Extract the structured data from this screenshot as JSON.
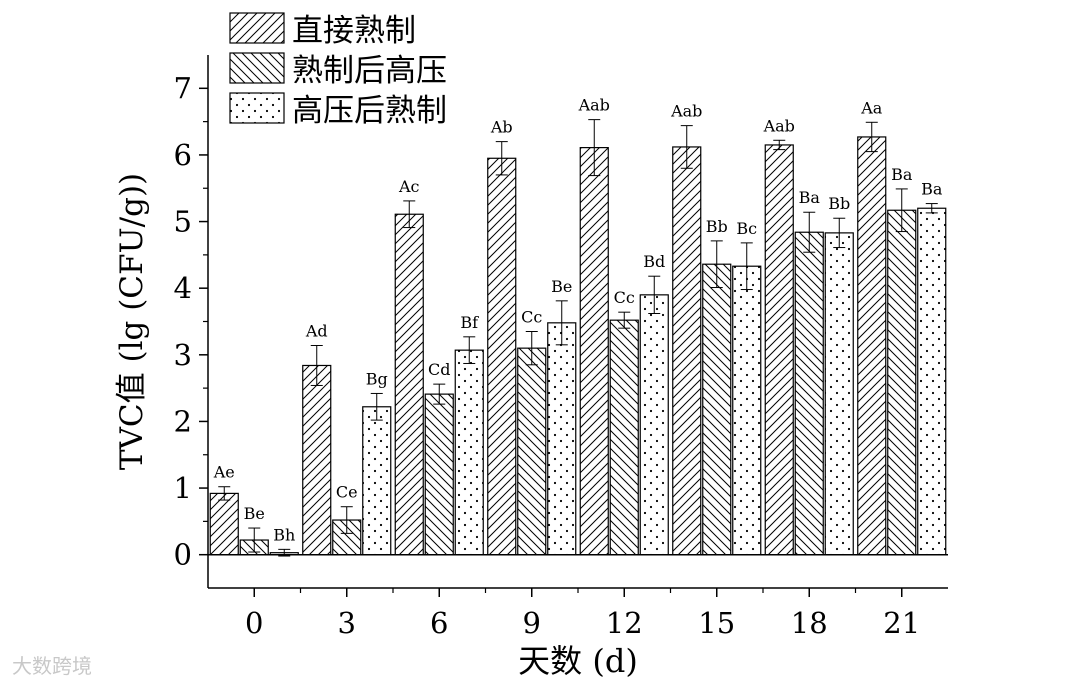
{
  "chart_data": {
    "type": "bar",
    "xlabel": "天数 (d)",
    "ylabel": "TVC值 (lg (CFU/g))",
    "ylim": [
      -0.5,
      7.5
    ],
    "yticks": [
      0,
      1,
      2,
      3,
      4,
      5,
      6,
      7
    ],
    "categories": [
      "0",
      "3",
      "6",
      "9",
      "12",
      "15",
      "18",
      "21"
    ],
    "legend_position": "top-left",
    "series": [
      {
        "name": "直接熟制",
        "pattern": "diagonal-forward",
        "values": [
          0.92,
          2.84,
          5.11,
          5.95,
          6.11,
          6.12,
          6.15,
          6.27
        ],
        "errors": [
          0.1,
          0.3,
          0.2,
          0.25,
          0.42,
          0.32,
          0.07,
          0.22
        ],
        "labels": [
          "Ae",
          "Ad",
          "Ac",
          "Ab",
          "Aab",
          "Aab",
          "Aab",
          "Aa"
        ]
      },
      {
        "name": "熟制后高压",
        "pattern": "diagonal-backward",
        "values": [
          0.22,
          0.52,
          2.41,
          3.1,
          3.52,
          4.36,
          4.84,
          5.17
        ],
        "errors": [
          0.18,
          0.2,
          0.15,
          0.25,
          0.12,
          0.35,
          0.3,
          0.32
        ],
        "labels": [
          "Be",
          "Ce",
          "Cd",
          "Cc",
          "Cc",
          "Bb",
          "Ba",
          "Ba"
        ]
      },
      {
        "name": "高压后熟制",
        "pattern": "dots",
        "values": [
          0.03,
          2.22,
          3.07,
          3.48,
          3.9,
          4.33,
          4.83,
          5.2
        ],
        "errors": [
          0.05,
          0.2,
          0.2,
          0.33,
          0.28,
          0.35,
          0.22,
          0.07
        ],
        "labels": [
          "Bh",
          "Bg",
          "Bf",
          "Be",
          "Bd",
          "Bc",
          "Bb",
          "Ba"
        ]
      }
    ]
  },
  "watermark": "大数跨境"
}
